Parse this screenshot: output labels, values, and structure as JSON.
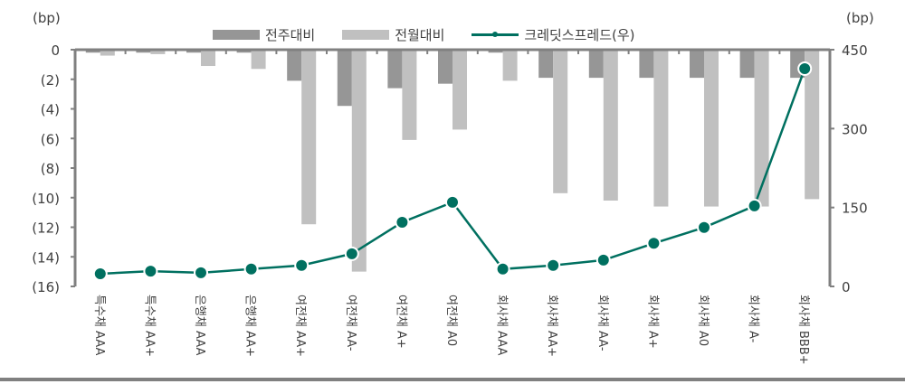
{
  "legend": {
    "weekly": "전주대비",
    "monthly": "전월대비",
    "spread": "크레딧스프레드(우)"
  },
  "axes": {
    "left_unit": "(bp)",
    "right_unit": "(bp)",
    "left_ticks": [
      "0",
      "(2)",
      "(4)",
      "(6)",
      "(8)",
      "(10)",
      "(12)",
      "(14)",
      "(16)"
    ],
    "right_ticks": [
      "450",
      "300",
      "150",
      "0"
    ]
  },
  "colors": {
    "weekly": "#969696",
    "monthly": "#c0c0c0",
    "spread": "#007060",
    "axis": "#808080"
  },
  "chart_data": {
    "type": "bar",
    "title": "",
    "xlabel": "",
    "ylabel": "(bp)",
    "y2label": "(bp)",
    "ylim": [
      -16,
      0
    ],
    "y2lim": [
      0,
      450
    ],
    "legend_position": "top",
    "grid": false,
    "categories": [
      "특수채 AAA",
      "특수채 AA+",
      "은행채 AAA",
      "은행채 AA+",
      "여전채 AA+",
      "여전채 AA-",
      "여전채 A+",
      "여전채 A0",
      "회사채 AAA",
      "회사채 AA+",
      "회사채 AA-",
      "회사채 A+",
      "회사채 A0",
      "회사채 A-",
      "회사채 BBB+"
    ],
    "series": [
      {
        "name": "전주대비",
        "type": "bar",
        "axis": "left",
        "values": [
          -0.2,
          -0.2,
          -0.2,
          -0.2,
          -2.1,
          -3.8,
          -2.6,
          -2.3,
          -0.2,
          -1.9,
          -1.9,
          -1.9,
          -1.9,
          -1.9,
          -1.9
        ]
      },
      {
        "name": "전월대비",
        "type": "bar",
        "axis": "left",
        "values": [
          -0.4,
          -0.3,
          -1.1,
          -1.3,
          -11.8,
          -15.0,
          -6.1,
          -5.4,
          -2.1,
          -9.7,
          -10.2,
          -10.6,
          -10.6,
          -10.6,
          -10.1
        ]
      },
      {
        "name": "크레딧스프레드(우)",
        "type": "line",
        "axis": "right",
        "values": [
          24,
          29,
          26,
          33,
          40,
          62,
          122,
          160,
          33,
          40,
          50,
          82,
          112,
          153,
          414
        ]
      }
    ]
  }
}
